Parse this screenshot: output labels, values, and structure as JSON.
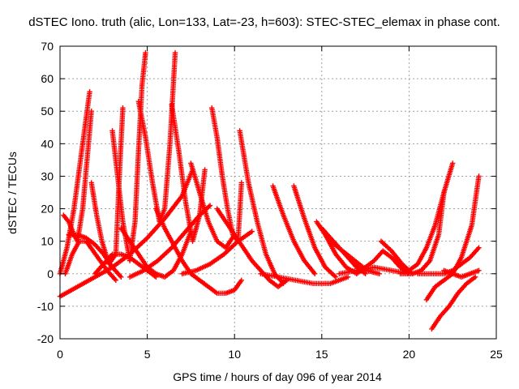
{
  "chart_data": {
    "type": "scatter",
    "title": "dSTEC Iono. truth (alic, Lon=133, Lat=-23, h=603): STEC-STEC_elemax in phase cont.",
    "xlabel": "GPS time / hours of day 096 of year 2014",
    "ylabel": "dSTEC  / TECUs",
    "xlim": [
      0,
      25
    ],
    "ylim": [
      -20,
      70
    ],
    "x_ticks": [
      0,
      5,
      10,
      15,
      20,
      25
    ],
    "y_ticks": [
      -20,
      -10,
      0,
      10,
      20,
      30,
      40,
      50,
      60,
      70
    ],
    "grid": true,
    "marker": "+",
    "color": "#ff0000",
    "series": [
      {
        "name": "arc1",
        "x": [
          0.0,
          0.4,
          0.8,
          1.2,
          1.5,
          1.7
        ],
        "y": [
          0,
          8,
          20,
          36,
          48,
          56
        ]
      },
      {
        "name": "arc2",
        "x": [
          0.3,
          0.7,
          1.1,
          1.5,
          1.9,
          2.3,
          2.7,
          3.2
        ],
        "y": [
          0,
          6,
          10,
          10,
          7,
          4,
          1,
          -2
        ]
      },
      {
        "name": "arc3",
        "x": [
          0.2,
          0.5,
          0.8,
          1.0,
          1.3,
          1.6,
          1.8
        ],
        "y": [
          18,
          16,
          12,
          10,
          20,
          38,
          50
        ]
      },
      {
        "name": "arc4",
        "x": [
          0.5,
          1.0,
          1.5,
          2.0,
          2.5,
          3.0,
          3.5
        ],
        "y": [
          12,
          12,
          11,
          9,
          6,
          2,
          -1
        ]
      },
      {
        "name": "arc5",
        "x": [
          0.0,
          1.0,
          2.0,
          3.0,
          4.0,
          5.0,
          6.0,
          7.0,
          7.6
        ],
        "y": [
          -7,
          -4,
          -1,
          2,
          6,
          11,
          17,
          24,
          32
        ]
      },
      {
        "name": "arc6",
        "x": [
          1.8,
          2.1,
          2.4,
          2.8,
          3.2,
          3.4,
          3.6
        ],
        "y": [
          28,
          18,
          10,
          3,
          6,
          30,
          51
        ]
      },
      {
        "name": "arc7",
        "x": [
          3.0,
          3.3,
          3.6,
          4.0,
          4.3,
          4.5,
          4.7,
          4.9
        ],
        "y": [
          44,
          30,
          16,
          4,
          16,
          38,
          58,
          68
        ]
      },
      {
        "name": "arc8",
        "x": [
          2.0,
          2.5,
          3.0,
          3.5,
          4.0,
          4.5,
          5.0,
          5.5
        ],
        "y": [
          0,
          3,
          6,
          6,
          5,
          3,
          1,
          -1
        ]
      },
      {
        "name": "arc9",
        "x": [
          3.5,
          4.0,
          4.5,
          5.0,
          5.5,
          6.0,
          6.5,
          7.0,
          7.5
        ],
        "y": [
          14,
          10,
          6,
          2,
          0,
          -1,
          1,
          6,
          13
        ]
      },
      {
        "name": "arc10",
        "x": [
          4.5,
          4.9,
          5.3,
          5.7,
          6.0,
          6.3,
          6.6
        ],
        "y": [
          53,
          42,
          28,
          16,
          20,
          40,
          68
        ]
      },
      {
        "name": "arc11",
        "x": [
          4.0,
          4.8,
          5.6,
          6.4,
          7.2,
          8.0,
          8.6
        ],
        "y": [
          -1,
          1,
          4,
          8,
          13,
          18,
          21
        ]
      },
      {
        "name": "arc12",
        "x": [
          6.4,
          6.8,
          7.2,
          7.6,
          8.0,
          8.3
        ],
        "y": [
          52,
          38,
          22,
          10,
          18,
          32
        ]
      },
      {
        "name": "arc13",
        "x": [
          5.5,
          6.0,
          6.5,
          7.0,
          7.5,
          8.0,
          8.5,
          9.0,
          9.5,
          10.0,
          10.4
        ],
        "y": [
          20,
          14,
          9,
          4,
          0,
          -2,
          -4,
          -6,
          -6,
          -5,
          -2
        ]
      },
      {
        "name": "arc14",
        "x": [
          7.5,
          8.0,
          8.5,
          9.0,
          9.5,
          10.0
        ],
        "y": [
          34,
          25,
          16,
          10,
          8,
          12
        ]
      },
      {
        "name": "arc15",
        "x": [
          8.7,
          9.0,
          9.3,
          9.6,
          9.9,
          10.2,
          10.4
        ],
        "y": [
          51,
          42,
          30,
          20,
          12,
          10,
          28
        ]
      },
      {
        "name": "arc16",
        "x": [
          7.0,
          7.8,
          8.6,
          9.4,
          10.2,
          11.0
        ],
        "y": [
          0,
          1,
          3,
          6,
          10,
          13
        ]
      },
      {
        "name": "arc17",
        "x": [
          10.3,
          10.8,
          11.3,
          11.8,
          12.3,
          12.8
        ],
        "y": [
          44,
          28,
          16,
          6,
          0,
          -3
        ]
      },
      {
        "name": "arc18",
        "x": [
          9.0,
          10.0,
          11.0,
          12.0,
          12.5,
          13.0
        ],
        "y": [
          20,
          12,
          4,
          -2,
          -4,
          -2
        ]
      },
      {
        "name": "arc19",
        "x": [
          12.2,
          12.8,
          13.4,
          14.0,
          14.6
        ],
        "y": [
          27,
          18,
          10,
          4,
          0
        ]
      },
      {
        "name": "arc20",
        "x": [
          13.4,
          14.0,
          14.6,
          15.2,
          15.8
        ],
        "y": [
          27,
          17,
          8,
          2,
          -1
        ]
      },
      {
        "name": "arc21",
        "x": [
          11.5,
          12.5,
          13.5,
          14.5,
          15.5,
          16.5
        ],
        "y": [
          0,
          -1,
          -2,
          -3,
          -3,
          -1
        ]
      },
      {
        "name": "arc22",
        "x": [
          14.7,
          15.2,
          15.8,
          16.4,
          17.0
        ],
        "y": [
          16,
          12,
          6,
          2,
          0
        ]
      },
      {
        "name": "arc23",
        "x": [
          15.0,
          15.5,
          16.0,
          16.5,
          17.0,
          17.5
        ],
        "y": [
          14,
          11,
          8,
          5,
          2,
          0
        ]
      },
      {
        "name": "arc24",
        "x": [
          15.5,
          16.2,
          16.9,
          17.6,
          18.3
        ],
        "y": [
          10,
          7,
          4,
          1,
          0
        ]
      },
      {
        "name": "arc25",
        "x": [
          16.0,
          17.0,
          18.0,
          19.0,
          20.0
        ],
        "y": [
          0,
          1,
          2,
          1,
          0
        ]
      },
      {
        "name": "arc26",
        "x": [
          18.4,
          19.0,
          19.6,
          20.2
        ],
        "y": [
          10,
          7,
          3,
          0
        ]
      },
      {
        "name": "arc27",
        "x": [
          17.0,
          18.0,
          18.5,
          19.0,
          19.5,
          20.0
        ],
        "y": [
          0,
          4,
          7,
          5,
          2,
          0
        ]
      },
      {
        "name": "arc28",
        "x": [
          19.5,
          20.2,
          20.7,
          21.2,
          21.7,
          22.0
        ],
        "y": [
          0,
          0,
          1,
          4,
          12,
          25
        ]
      },
      {
        "name": "arc29",
        "x": [
          20.0,
          20.5,
          21.0,
          21.5,
          22.0,
          22.5
        ],
        "y": [
          1,
          3,
          8,
          15,
          25,
          34
        ]
      },
      {
        "name": "arc30",
        "x": [
          21.0,
          21.5,
          22.0,
          22.5,
          23.0,
          23.6,
          24.0
        ],
        "y": [
          -8,
          -4,
          -2,
          0,
          5,
          15,
          30
        ]
      },
      {
        "name": "arc31",
        "x": [
          21.3,
          21.8,
          22.3,
          22.8,
          23.3,
          23.8
        ],
        "y": [
          -17,
          -13,
          -10,
          -6,
          -3,
          -1
        ]
      },
      {
        "name": "arc32",
        "x": [
          22.0,
          22.5,
          23.0,
          23.5,
          24.0
        ],
        "y": [
          1,
          0,
          -1,
          0,
          1
        ]
      },
      {
        "name": "arc33",
        "x": [
          20.5,
          21.0,
          21.5,
          22.0,
          22.5,
          23.0,
          23.5,
          24.0
        ],
        "y": [
          0,
          0,
          0,
          0,
          1,
          3,
          5,
          8
        ]
      }
    ]
  }
}
